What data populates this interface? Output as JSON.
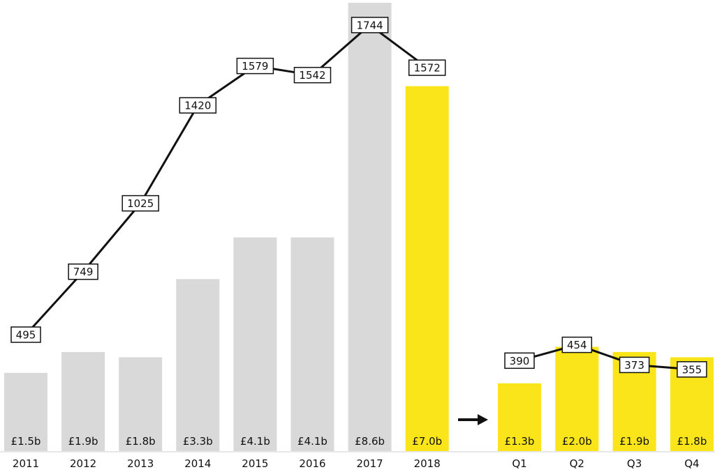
{
  "colors": {
    "annual_bar": "#d9d9d9",
    "highlight_bar": "#f9e51a",
    "line": "#111111",
    "label_box_fill": "#ffffff",
    "label_box_stroke": "#111111",
    "baseline": "#cfcfcf"
  },
  "icons": {
    "transition_arrow": "right-arrow-icon"
  },
  "chart_data": [
    {
      "type": "bar",
      "categories": [
        "2011",
        "2012",
        "2013",
        "2014",
        "2015",
        "2016",
        "2017",
        "2018"
      ],
      "series": [
        {
          "values": [
            1.5,
            1.9,
            1.8,
            3.3,
            4.1,
            4.1,
            8.6,
            7.0
          ],
          "labels": [
            "£1.5b",
            "£1.9b",
            "£1.8b",
            "£3.3b",
            "£4.1b",
            "£4.1b",
            "£8.6b",
            "£7.0b"
          ]
        }
      ],
      "highlight_categories": [
        "2018"
      ],
      "line_series": {
        "values": [
          495,
          749,
          1025,
          1420,
          1579,
          1542,
          1744,
          1572
        ]
      },
      "bar_ylim": [
        0,
        8.6
      ],
      "line_ylim": [
        0,
        1800
      ],
      "grid": false,
      "legend": "none"
    },
    {
      "type": "bar",
      "categories": [
        "Q1",
        "Q2",
        "Q3",
        "Q4"
      ],
      "series": [
        {
          "values": [
            1.3,
            2.0,
            1.9,
            1.8
          ],
          "labels": [
            "£1.3b",
            "£2.0b",
            "£1.9b",
            "£1.8b"
          ]
        }
      ],
      "line_series": {
        "values": [
          390,
          454,
          373,
          355
        ]
      },
      "bar_ylim": [
        0,
        8.6
      ],
      "line_ylim": [
        0,
        1800
      ],
      "grid": false,
      "legend": "none"
    }
  ]
}
